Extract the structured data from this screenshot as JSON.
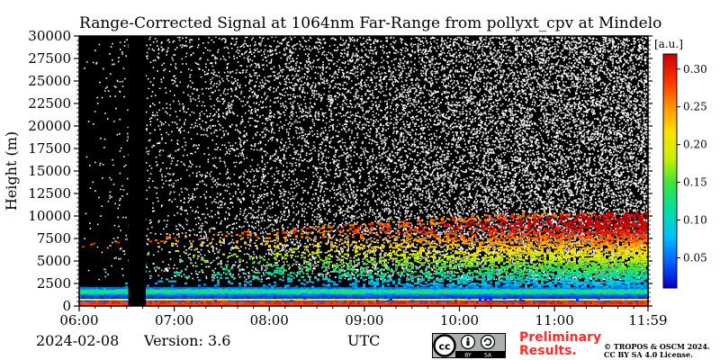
{
  "chart_data": {
    "type": "heatmap",
    "title": "Range-Corrected Signal at 1064nm Far-Range from pollyxt_cpv at Mindelo",
    "xlabel": "UTC",
    "ylabel": "Height (m)",
    "x_range": [
      "06:00",
      "11:59"
    ],
    "ylim": [
      0,
      30000
    ],
    "x_ticks": [
      "06:00",
      "07:00",
      "08:00",
      "09:00",
      "10:00",
      "11:00",
      "11:59"
    ],
    "y_ticks": [
      0,
      2500,
      5000,
      7500,
      10000,
      12500,
      15000,
      17500,
      20000,
      22500,
      25000,
      27500,
      30000
    ],
    "colorbar": {
      "label": "[a.u.]",
      "ticks": [
        "0.05",
        "0.10",
        "0.15",
        "0.20",
        "0.25",
        "0.30"
      ],
      "range": [
        0.01,
        0.32
      ],
      "colormap": [
        "#0000c8",
        "#0060ff",
        "#00c0ff",
        "#00e0a0",
        "#40e040",
        "#c8f000",
        "#ffe000",
        "#ff9000",
        "#ff3000",
        "#c80000"
      ]
    },
    "no_data_interval": [
      "06:31",
      "06:42"
    ],
    "grid": false
  },
  "footer": {
    "date": "2024-02-08",
    "version": "Version: 3.6",
    "preliminary_line1": "Preliminary",
    "preliminary_line2": "Results.",
    "copyright_line1": "© TROPOS & OSCM 2024.",
    "copyright_line2": "CC BY SA 4.0 License."
  },
  "license_badge": {
    "text_by": "BY",
    "text_sa": "SA"
  }
}
